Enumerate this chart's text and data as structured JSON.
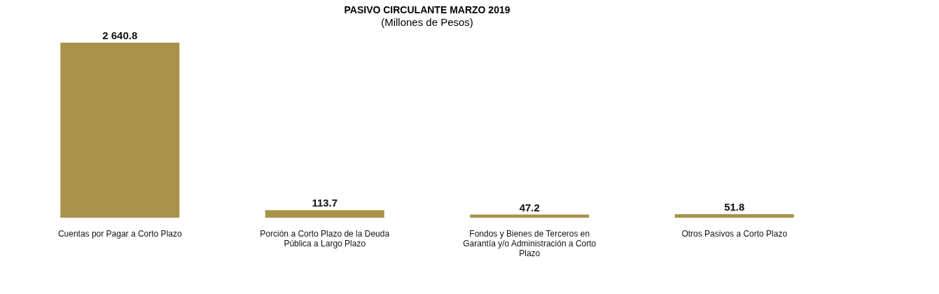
{
  "chart_data": {
    "type": "bar",
    "title": "PASIVO CIRCULANTE  MARZO  2019",
    "subtitle": "(Millones de Pesos)",
    "categories": [
      "Cuentas por Pagar a Corto Plazo",
      "Porción a Corto Plazo de la Deuda Pública a Largo Plazo",
      "Fondos y Bienes de Terceros en Garantía y/o Administración a Corto Plazo",
      "Otros Pasivos a Corto Plazo"
    ],
    "values": [
      2640.8,
      113.7,
      47.2,
      51.8
    ],
    "value_labels": [
      "2 640.8",
      "113.7",
      "47.2",
      "51.8"
    ],
    "color": "#a8924a"
  }
}
